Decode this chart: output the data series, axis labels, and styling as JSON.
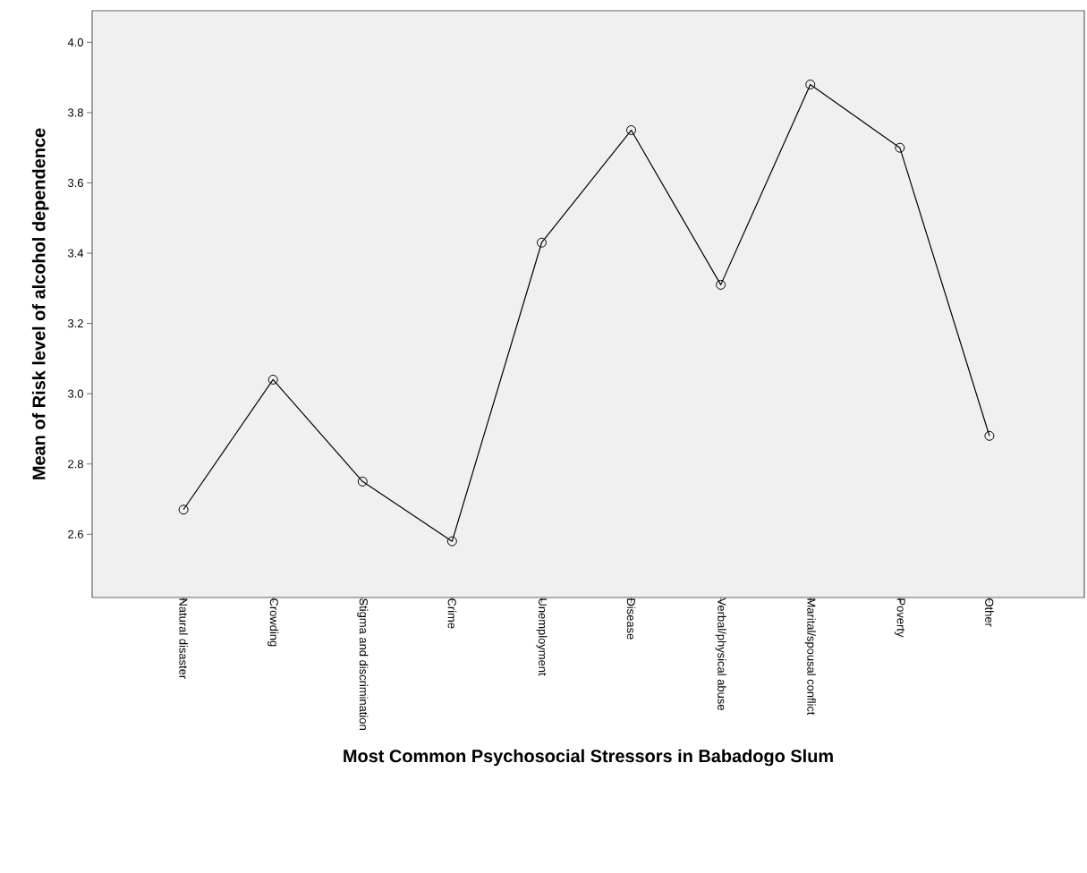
{
  "chart_data": {
    "type": "line",
    "xlabel": "Most Common Psychosocial Stressors in Babadogo Slum",
    "ylabel": "Mean of Risk level of alcohol dependence",
    "categories": [
      "Natural disaster",
      "Crowding",
      "Stigma and discrimination",
      "Crime",
      "Unemployment",
      "Disease",
      "Verbal/physical abuse",
      "Marital/spousal conflict",
      "Poverty",
      "Other"
    ],
    "values": [
      2.67,
      3.04,
      2.75,
      2.58,
      3.43,
      3.75,
      3.31,
      3.88,
      3.7,
      2.88
    ],
    "color": "#000000",
    "marker": "circle",
    "line_style": "solid",
    "ylim": [
      2.42,
      4.09
    ],
    "yticks": [
      {
        "value": 2.6,
        "label": "2.6"
      },
      {
        "value": 2.8,
        "label": "2.8"
      },
      {
        "value": 3.0,
        "label": "3.0"
      },
      {
        "value": 3.2,
        "label": "3.2"
      },
      {
        "value": 3.4,
        "label": "3.4"
      },
      {
        "value": 3.6,
        "label": "3.6"
      },
      {
        "value": 3.8,
        "label": "3.8"
      },
      {
        "value": 4.0,
        "label": "4.0"
      }
    ],
    "grid": false
  }
}
